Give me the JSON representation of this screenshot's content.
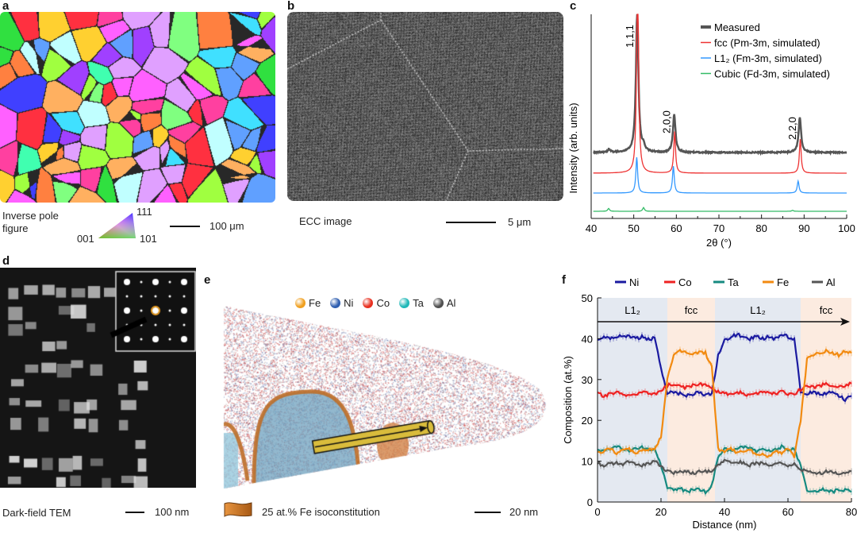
{
  "panels": {
    "a": {
      "label": "a",
      "caption_line1": "Inverse pole",
      "caption_line2": "figure",
      "ipf_corners": {
        "top": "111",
        "left": "001",
        "right": "101"
      },
      "scale": "100 μm"
    },
    "b": {
      "label": "b",
      "caption": "ECC image",
      "scale": "5 μm"
    },
    "c": {
      "label": "c"
    },
    "d": {
      "label": "d",
      "caption": "Dark-field TEM",
      "scale": "100 nm"
    },
    "e": {
      "label": "e",
      "legend": [
        {
          "name": "Fe",
          "color": "#f0a020"
        },
        {
          "name": "Ni",
          "color": "#2f5fb0"
        },
        {
          "name": "Co",
          "color": "#e83020"
        },
        {
          "name": "Ta",
          "color": "#20b8b8"
        },
        {
          "name": "Al",
          "color": "#505050"
        }
      ],
      "isosurface_label": "25 at.% Fe isoconstitution",
      "scale": "20 nm"
    },
    "f": {
      "label": "f"
    }
  },
  "chart_data": [
    {
      "panel": "c",
      "type": "line",
      "xlabel": "2θ (°)",
      "ylabel": "Intensity (arb. units)",
      "xlim": [
        40,
        100
      ],
      "xticks": [
        40,
        50,
        60,
        70,
        80,
        90,
        100
      ],
      "legend_placement": "top-right",
      "peak_labels": [
        {
          "text": "1,1,1",
          "x": 50.8
        },
        {
          "text": "2,0,0",
          "x": 59.5
        },
        {
          "text": "2,2,0",
          "x": 89.0
        }
      ],
      "series": [
        {
          "name": "Measured",
          "color": "#555555",
          "peaks": [
            [
              44.2,
              0.05
            ],
            [
              50.8,
              2.2
            ],
            [
              52.3,
              0.08
            ],
            [
              59.5,
              0.6
            ],
            [
              89.0,
              0.55
            ]
          ]
        },
        {
          "name": "fcc (Pm-3m, simulated)",
          "color": "#ee3333",
          "peaks": [
            [
              50.9,
              3.0
            ],
            [
              59.6,
              0.55
            ],
            [
              89.1,
              0.45
            ]
          ]
        },
        {
          "name": "L1₂ (Fm-3m, simulated)",
          "color": "#3399ff",
          "peaks": [
            [
              50.7,
              0.6
            ],
            [
              59.3,
              0.45
            ],
            [
              88.6,
              0.2
            ]
          ]
        },
        {
          "name": "Cubic (Fd-3m, simulated)",
          "color": "#33bb66",
          "peaks": [
            [
              44.1,
              0.06
            ],
            [
              52.3,
              0.08
            ],
            [
              87.3,
              0.02
            ]
          ]
        }
      ]
    },
    {
      "panel": "f",
      "type": "line",
      "xlabel": "Distance (nm)",
      "ylabel": "Composition (at.%)",
      "xlim": [
        0,
        80
      ],
      "ylim": [
        0,
        50
      ],
      "xticks": [
        0,
        20,
        40,
        60,
        80
      ],
      "yticks": [
        0,
        10,
        20,
        30,
        40,
        50
      ],
      "legend_placement": "top",
      "phase_bands": [
        {
          "label": "L1₂",
          "from": 0,
          "to": 22,
          "color": "#e4e9f1"
        },
        {
          "label": "fcc",
          "from": 22,
          "to": 37,
          "color": "#fcebe0"
        },
        {
          "label": "L1₂",
          "from": 37,
          "to": 64,
          "color": "#e4e9f1"
        },
        {
          "label": "fcc",
          "from": 64,
          "to": 80,
          "color": "#fcebe0"
        }
      ],
      "x": [
        0,
        2,
        4,
        6,
        8,
        10,
        12,
        14,
        16,
        18,
        20,
        22,
        24,
        26,
        28,
        30,
        32,
        34,
        36,
        38,
        40,
        42,
        44,
        46,
        48,
        50,
        52,
        54,
        56,
        58,
        60,
        62,
        64,
        66,
        68,
        70,
        72,
        74,
        76,
        78,
        80
      ],
      "series": [
        {
          "name": "Ni",
          "color": "#1a1aa0",
          "values": [
            40,
            40.5,
            40,
            40.5,
            41,
            40.5,
            40,
            40.5,
            40,
            40,
            33,
            26.5,
            27,
            26.5,
            26,
            26.5,
            27,
            26,
            26.5,
            36,
            39.5,
            40.5,
            41,
            40.5,
            40,
            40.5,
            40,
            40.5,
            40,
            41,
            40.5,
            40,
            27,
            26.5,
            27,
            26.5,
            26.5,
            27,
            26,
            25,
            26
          ]
        },
        {
          "name": "Co",
          "color": "#ee2222",
          "values": [
            26.5,
            26,
            26.5,
            27,
            26.5,
            26,
            26.5,
            27,
            26.5,
            26.5,
            27.5,
            28.5,
            29,
            28.5,
            28,
            28.5,
            29,
            28.5,
            28,
            27,
            26.5,
            26.5,
            27,
            26.5,
            26,
            26.5,
            27,
            26.5,
            26.5,
            27,
            26.5,
            26.5,
            27.5,
            28.5,
            28,
            28.5,
            29,
            28.5,
            28,
            28.5,
            29
          ]
        },
        {
          "name": "Ta",
          "color": "#168a80",
          "values": [
            13,
            12.5,
            13,
            13.5,
            13,
            12.5,
            13,
            13.5,
            13,
            13,
            9,
            3.5,
            3,
            3.5,
            2.5,
            3,
            3,
            2.5,
            4,
            11,
            13,
            12.5,
            13,
            13.5,
            13,
            12.5,
            13,
            12.5,
            13,
            13.5,
            13,
            13,
            9,
            3,
            2.5,
            3,
            3,
            2.5,
            3,
            3,
            2.5
          ]
        },
        {
          "name": "Fe",
          "color": "#f28a10",
          "values": [
            12,
            12.5,
            13,
            12,
            12.5,
            13,
            12,
            12.5,
            13,
            13,
            16,
            30,
            36,
            37,
            36.5,
            36,
            37,
            36.5,
            33,
            13,
            12.5,
            13,
            12,
            12.5,
            13,
            11.5,
            12,
            11,
            12.5,
            12,
            13,
            11,
            20,
            35,
            36,
            36.5,
            37,
            36.5,
            36,
            37,
            36.5
          ]
        },
        {
          "name": "Al",
          "color": "#555555",
          "values": [
            9.5,
            9,
            9.5,
            9.5,
            9,
            10,
            9.5,
            9,
            9.5,
            10,
            8.5,
            7.5,
            7,
            7.5,
            7.5,
            7,
            7.5,
            7.5,
            7.5,
            9,
            10,
            9.5,
            10,
            9.5,
            9,
            9.5,
            9.5,
            9,
            9.5,
            9.5,
            9,
            9.5,
            8,
            7.5,
            7.5,
            7,
            7.5,
            7.5,
            7,
            7,
            7.5
          ]
        }
      ]
    }
  ]
}
